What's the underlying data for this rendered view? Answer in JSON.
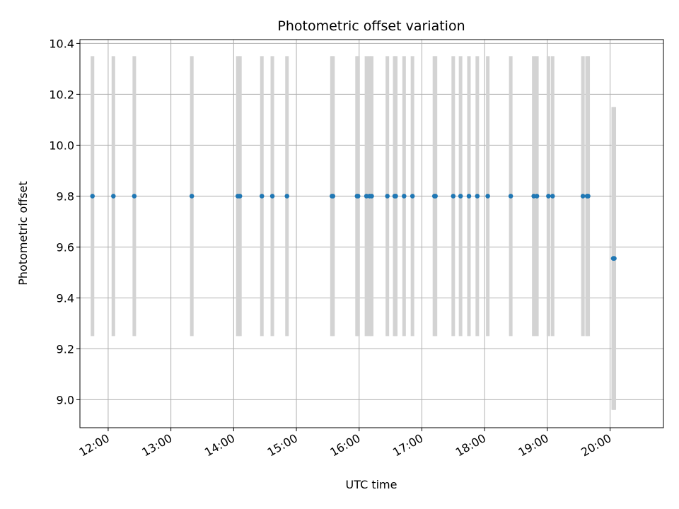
{
  "chart_data": {
    "type": "scatter",
    "title": "Photometric offset variation",
    "xlabel": "UTC time",
    "ylabel": "Photometric offset",
    "x_ticks": [
      "12:00",
      "13:00",
      "14:00",
      "15:00",
      "16:00",
      "17:00",
      "18:00",
      "19:00",
      "20:00"
    ],
    "y_ticks": [
      9.0,
      9.2,
      9.4,
      9.6,
      9.8,
      10.0,
      10.2,
      10.4
    ],
    "xlim": [
      "11:33",
      "20:51"
    ],
    "ylim": [
      8.89,
      10.415
    ],
    "grid": true,
    "colors": {
      "point": "#1f77b4",
      "errorbar": "#d3d3d3",
      "grid": "#b0b0b0"
    },
    "points": [
      {
        "time": "11:45",
        "y": 9.8,
        "yerr": 0.55
      },
      {
        "time": "12:05",
        "y": 9.8,
        "yerr": 0.55
      },
      {
        "time": "12:25",
        "y": 9.8,
        "yerr": 0.55
      },
      {
        "time": "13:20",
        "y": 9.8,
        "yerr": 0.55
      },
      {
        "time": "14:04",
        "y": 9.8,
        "yerr": 0.55
      },
      {
        "time": "14:06",
        "y": 9.8,
        "yerr": 0.55
      },
      {
        "time": "14:27",
        "y": 9.8,
        "yerr": 0.55
      },
      {
        "time": "14:37",
        "y": 9.8,
        "yerr": 0.55
      },
      {
        "time": "14:51",
        "y": 9.8,
        "yerr": 0.55
      },
      {
        "time": "15:34",
        "y": 9.8,
        "yerr": 0.55
      },
      {
        "time": "15:35",
        "y": 9.8,
        "yerr": 0.55
      },
      {
        "time": "15:58",
        "y": 9.8,
        "yerr": 0.55
      },
      {
        "time": "15:59",
        "y": 9.8,
        "yerr": 0.55
      },
      {
        "time": "16:07",
        "y": 9.8,
        "yerr": 0.55
      },
      {
        "time": "16:10",
        "y": 9.8,
        "yerr": 0.55
      },
      {
        "time": "16:12",
        "y": 9.8,
        "yerr": 0.55
      },
      {
        "time": "16:27",
        "y": 9.8,
        "yerr": 0.55
      },
      {
        "time": "16:34",
        "y": 9.8,
        "yerr": 0.55
      },
      {
        "time": "16:35",
        "y": 9.8,
        "yerr": 0.55
      },
      {
        "time": "16:43",
        "y": 9.8,
        "yerr": 0.55
      },
      {
        "time": "16:51",
        "y": 9.8,
        "yerr": 0.55
      },
      {
        "time": "17:12",
        "y": 9.8,
        "yerr": 0.55
      },
      {
        "time": "17:13",
        "y": 9.8,
        "yerr": 0.55
      },
      {
        "time": "17:30",
        "y": 9.8,
        "yerr": 0.55
      },
      {
        "time": "17:37",
        "y": 9.8,
        "yerr": 0.55
      },
      {
        "time": "17:45",
        "y": 9.8,
        "yerr": 0.55
      },
      {
        "time": "17:53",
        "y": 9.8,
        "yerr": 0.55
      },
      {
        "time": "18:03",
        "y": 9.8,
        "yerr": 0.55
      },
      {
        "time": "18:25",
        "y": 9.8,
        "yerr": 0.55
      },
      {
        "time": "18:47",
        "y": 9.8,
        "yerr": 0.55
      },
      {
        "time": "18:50",
        "y": 9.8,
        "yerr": 0.55
      },
      {
        "time": "19:01",
        "y": 9.8,
        "yerr": 0.55
      },
      {
        "time": "19:05",
        "y": 9.8,
        "yerr": 0.55
      },
      {
        "time": "19:34",
        "y": 9.8,
        "yerr": 0.55
      },
      {
        "time": "19:38",
        "y": 9.8,
        "yerr": 0.55
      },
      {
        "time": "19:39",
        "y": 9.8,
        "yerr": 0.55
      },
      {
        "time": "20:03",
        "y": 9.555,
        "yerr": 0.595
      },
      {
        "time": "20:04",
        "y": 9.555,
        "yerr": 0.595
      }
    ]
  }
}
